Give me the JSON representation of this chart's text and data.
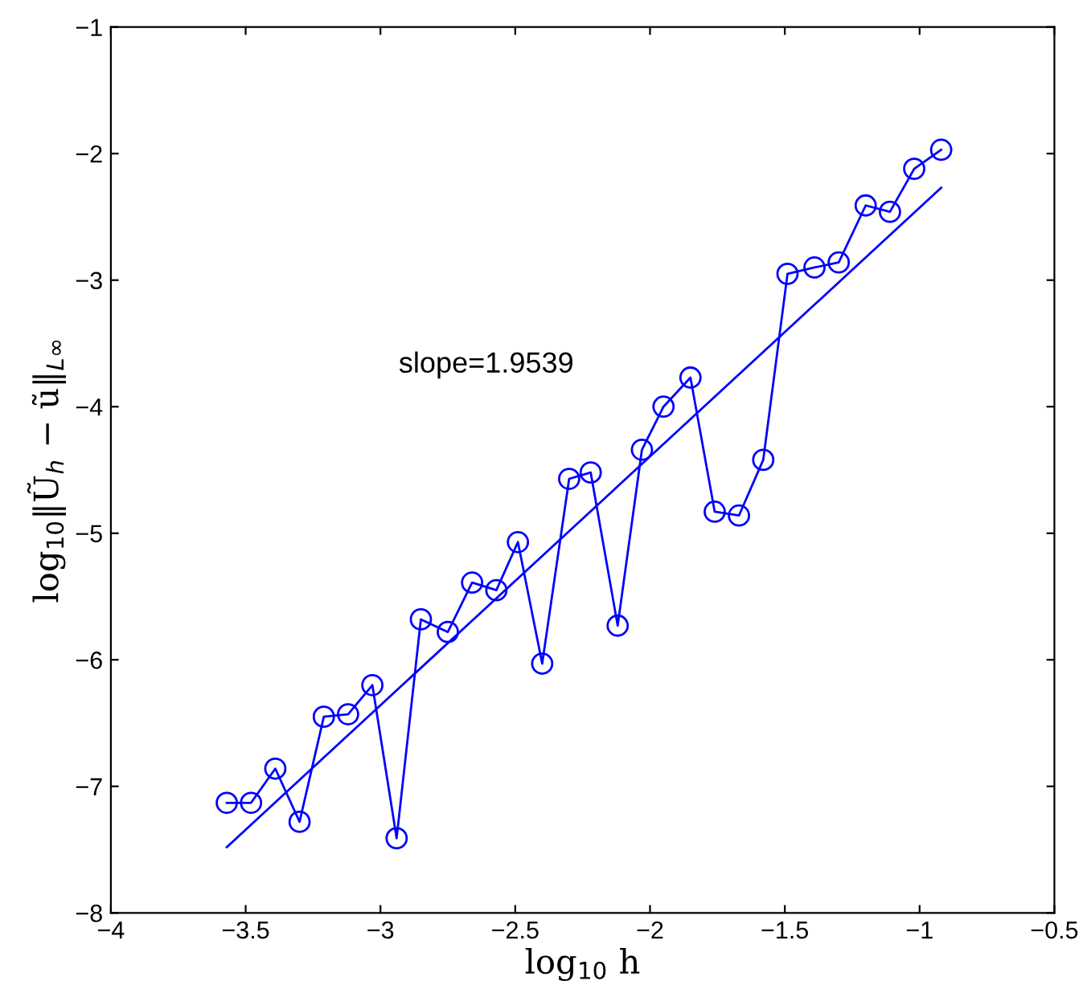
{
  "chart_data": {
    "type": "line",
    "xlabel": "log$_{10}$ h",
    "ylabel": "log$_{10}$‖Ũ$_{h}$ − ũ‖$_{L∞}$",
    "xlim": [
      -4,
      -0.5
    ],
    "xticks": [
      -4,
      -3.5,
      -3,
      -2.5,
      -2,
      -1.5,
      -1,
      -0.5
    ],
    "ylim": [
      -8,
      -1
    ],
    "yticks": [
      -8,
      -7,
      -6,
      -5,
      -4,
      -3,
      -2,
      -1
    ],
    "grid": false,
    "legend": false,
    "annotations": [
      "slope=1.9539"
    ],
    "series": [
      {
        "marker": "circle",
        "color": "#0000ff",
        "x": [
          -3.57,
          -3.48,
          -3.39,
          -3.3,
          -3.21,
          -3.12,
          -3.03,
          -2.94,
          -2.85,
          -2.75,
          -2.66,
          -2.57,
          -2.49,
          -2.4,
          -2.3,
          -2.22,
          -2.12,
          -2.03,
          -1.95,
          -1.85,
          -1.76,
          -1.67,
          -1.58,
          -1.49,
          -1.39,
          -1.3,
          -1.2,
          -1.11,
          -1.02,
          -0.92
        ],
        "values": [
          -7.13,
          -7.13,
          -6.86,
          -7.28,
          -6.45,
          -6.43,
          -6.2,
          -7.41,
          -5.68,
          -5.78,
          -5.39,
          -5.45,
          -5.07,
          -6.03,
          -4.57,
          -4.52,
          -5.73,
          -4.34,
          -4.0,
          -3.77,
          -4.83,
          -4.86,
          -4.42,
          -2.95,
          -2.9,
          -2.86,
          -2.41,
          -2.46,
          -2.12,
          -1.97
        ]
      },
      {
        "marker": "none",
        "color": "#0000ff",
        "x": [
          -3.57,
          -0.92
        ],
        "values": [
          -7.48,
          -2.27
        ]
      }
    ]
  }
}
